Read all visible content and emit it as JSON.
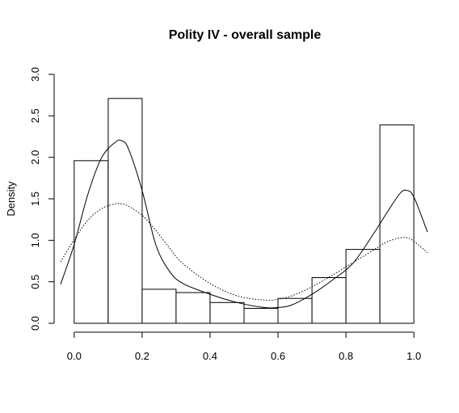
{
  "chart_data": {
    "type": "histogram",
    "title": "Polity IV - overall sample",
    "xlabel": "",
    "ylabel": "Density",
    "xlim": [
      -0.04,
      1.04
    ],
    "ylim": [
      0,
      3.0
    ],
    "x_ticks": [
      0.0,
      0.2,
      0.4,
      0.6,
      0.8,
      1.0
    ],
    "x_tick_labels": [
      "0.0",
      "0.2",
      "0.4",
      "0.6",
      "0.8",
      "1.0"
    ],
    "y_ticks": [
      0.0,
      0.5,
      1.0,
      1.5,
      2.0,
      2.5,
      3.0
    ],
    "y_tick_labels": [
      "0.0",
      "0.5",
      "1.0",
      "1.5",
      "2.0",
      "2.5",
      "3.0"
    ],
    "bins": [
      {
        "x0": 0.0,
        "x1": 0.1,
        "density": 1.96
      },
      {
        "x0": 0.1,
        "x1": 0.2,
        "density": 2.71
      },
      {
        "x0": 0.2,
        "x1": 0.3,
        "density": 0.41
      },
      {
        "x0": 0.3,
        "x1": 0.4,
        "density": 0.37
      },
      {
        "x0": 0.4,
        "x1": 0.5,
        "density": 0.25
      },
      {
        "x0": 0.5,
        "x1": 0.6,
        "density": 0.18
      },
      {
        "x0": 0.6,
        "x1": 0.7,
        "density": 0.3
      },
      {
        "x0": 0.7,
        "x1": 0.8,
        "density": 0.55
      },
      {
        "x0": 0.8,
        "x1": 0.9,
        "density": 0.89
      },
      {
        "x0": 0.9,
        "x1": 1.0,
        "density": 2.39
      }
    ],
    "series": [
      {
        "style": "solid",
        "x": [
          -0.04,
          0.0,
          0.04,
          0.08,
          0.12,
          0.14,
          0.16,
          0.2,
          0.24,
          0.28,
          0.32,
          0.4,
          0.48,
          0.56,
          0.6,
          0.64,
          0.7,
          0.76,
          0.82,
          0.88,
          0.92,
          0.96,
          0.98,
          1.0,
          1.04
        ],
        "y": [
          0.47,
          0.95,
          1.55,
          1.99,
          2.18,
          2.2,
          2.1,
          1.6,
          0.95,
          0.63,
          0.48,
          0.35,
          0.25,
          0.19,
          0.19,
          0.22,
          0.35,
          0.52,
          0.72,
          1.07,
          1.33,
          1.57,
          1.6,
          1.52,
          1.1
        ]
      },
      {
        "style": "dotted",
        "x": [
          -0.04,
          0.0,
          0.04,
          0.08,
          0.12,
          0.14,
          0.16,
          0.2,
          0.24,
          0.28,
          0.32,
          0.4,
          0.48,
          0.56,
          0.6,
          0.64,
          0.7,
          0.76,
          0.82,
          0.88,
          0.92,
          0.96,
          0.98,
          1.0,
          1.04
        ],
        "y": [
          0.74,
          1.01,
          1.24,
          1.38,
          1.44,
          1.44,
          1.41,
          1.3,
          1.12,
          0.91,
          0.72,
          0.48,
          0.33,
          0.28,
          0.29,
          0.33,
          0.44,
          0.58,
          0.73,
          0.88,
          0.98,
          1.03,
          1.03,
          0.99,
          0.85
        ]
      }
    ],
    "grid": false,
    "legend": "none"
  }
}
